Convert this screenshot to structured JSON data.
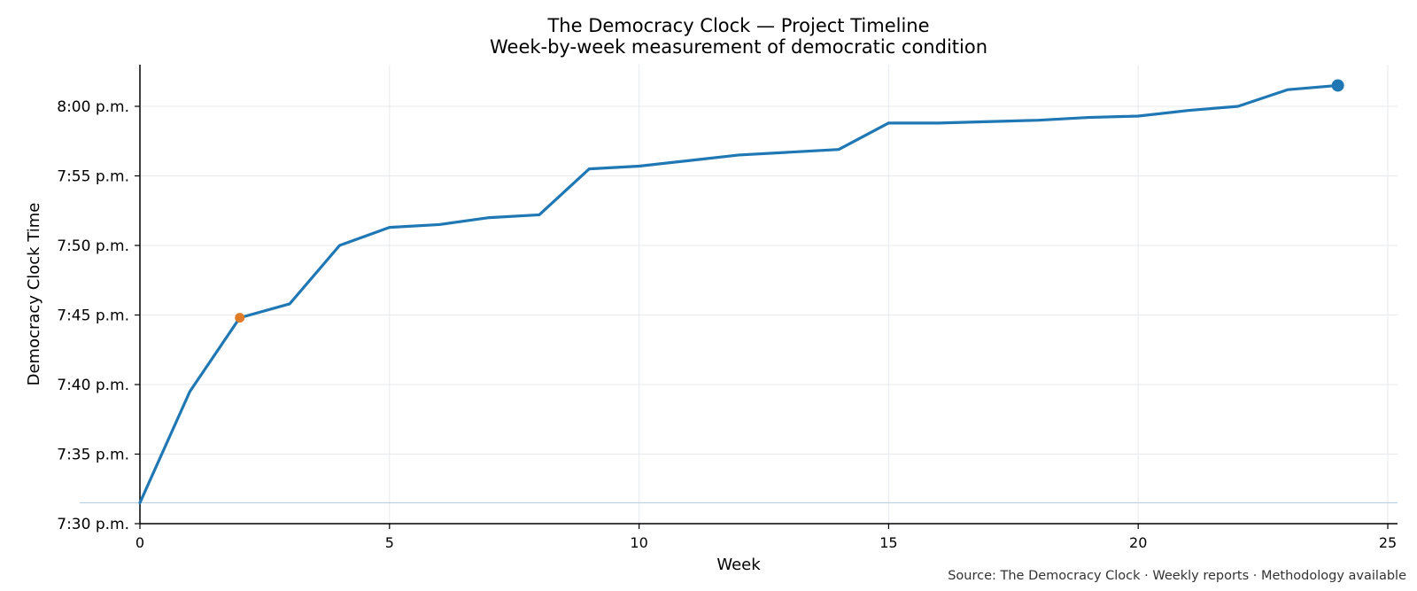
{
  "chart_data": {
    "type": "line",
    "title": "The Democracy Clock — Project Timeline",
    "subtitle": "Week-by-week measurement of democratic condition",
    "xlabel": "Week",
    "ylabel": "Democracy Clock Time",
    "xlim": [
      0,
      25.3
    ],
    "ylim_minutes_after_7pm": [
      30,
      60
    ],
    "x_ticks": [
      0,
      5,
      10,
      15,
      20,
      25
    ],
    "y_ticks": [
      {
        "minutes": 30,
        "label": "7:30 p.m."
      },
      {
        "minutes": 35,
        "label": "7:35 p.m."
      },
      {
        "minutes": 40,
        "label": "7:40 p.m."
      },
      {
        "minutes": 45,
        "label": "7:45 p.m."
      },
      {
        "minutes": 50,
        "label": "7:50 p.m."
      },
      {
        "minutes": 55,
        "label": "7:55 p.m."
      },
      {
        "minutes": 60,
        "label": "8:00 p.m."
      }
    ],
    "grid": true,
    "series": [
      {
        "color": "#1f77b4",
        "x": [
          0,
          1,
          2,
          3,
          4,
          5,
          6,
          7,
          8,
          9,
          10,
          11,
          12,
          13,
          14,
          15,
          16,
          17,
          18,
          19,
          20,
          21,
          22,
          23,
          24
        ],
        "y_minutes_after_7pm": [
          31.5,
          39.5,
          44.8,
          45.8,
          50.0,
          51.3,
          51.5,
          52.0,
          52.2,
          55.5,
          55.7,
          56.1,
          56.5,
          56.7,
          56.9,
          58.8,
          58.8,
          58.9,
          59.0,
          59.2,
          59.3,
          59.7,
          60.0,
          61.2,
          61.5
        ]
      }
    ],
    "highlight_points": [
      {
        "x": 2,
        "y_minutes_after_7pm": 44.8,
        "color": "#e07b28"
      },
      {
        "x": 24,
        "y_minutes_after_7pm": 61.5,
        "color": "#1f77b4"
      }
    ],
    "reference_line": {
      "y_minutes_after_7pm": 31.5,
      "color": "#b8cfe0"
    },
    "source": "Source: The Democracy Clock · Weekly reports · Methodology available"
  }
}
